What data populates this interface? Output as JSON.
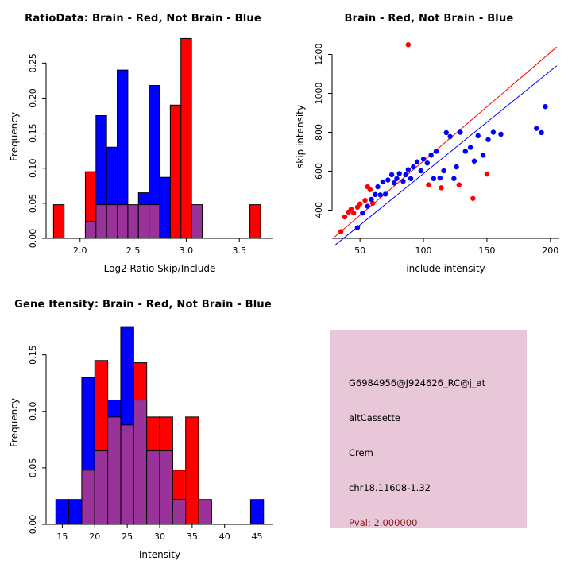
{
  "colors": {
    "red": "#ff0000",
    "blue": "#0000ff",
    "overlap": "#993399",
    "axis": "#000000",
    "info_bg": "#e8c7d8",
    "pval_text": "#8b1a1a"
  },
  "chart_data": [
    {
      "id": "ratio-hist",
      "type": "bar",
      "title": "RatioData: Brain - Red, Not Brain - Blue",
      "xlabel": "Log2 Ratio Skip/Include",
      "ylabel": "Frequency",
      "legend": "red = Brain, blue = Not Brain, purple = overlap",
      "grid": false,
      "xlim": [
        1.68,
        3.82
      ],
      "ylim": [
        0,
        0.29
      ],
      "xticks": [
        2.0,
        2.5,
        3.0,
        3.5
      ],
      "xtick_labels": [
        "2.0",
        "2.5",
        "3.0",
        "3.5"
      ],
      "yticks": [
        0,
        0.05,
        0.1,
        0.15,
        0.2,
        0.25
      ],
      "ytick_labels": [
        "0.00",
        "0.05",
        "0.10",
        "0.15",
        "0.20",
        "0.25"
      ],
      "bin_width": 0.1,
      "bin_starts": [
        1.75,
        2.05,
        2.15,
        2.25,
        2.35,
        2.45,
        2.55,
        2.65,
        2.75,
        2.85,
        2.95,
        3.05,
        3.6
      ],
      "series": [
        {
          "name": "Brain",
          "color": "red",
          "values": [
            0.048,
            0.095,
            0.048,
            0.048,
            0.048,
            0.048,
            0.048,
            0.048,
            0,
            0.19,
            0.285,
            0.048,
            0.048
          ]
        },
        {
          "name": "Not Brain",
          "color": "blue",
          "values": [
            0,
            0.024,
            0.175,
            0.13,
            0.24,
            0.048,
            0.065,
            0.218,
            0.087,
            0,
            0,
            0.048,
            0
          ]
        }
      ]
    },
    {
      "id": "scatter",
      "type": "scatter",
      "title": "Brain - Red, Not Brain - Blue",
      "xlabel": "include intensity",
      "ylabel": "skip intensity",
      "legend": "red = Brain, blue = Not Brain",
      "grid": false,
      "xlim": [
        28,
        207
      ],
      "ylim": [
        255,
        1300
      ],
      "xticks": [
        50,
        100,
        150,
        200
      ],
      "xtick_labels": [
        "50",
        "100",
        "150",
        "200"
      ],
      "yticks": [
        400,
        600,
        800,
        1000,
        1200
      ],
      "ytick_labels": [
        "400",
        "600",
        "800",
        "1000",
        "1200"
      ],
      "lines": [
        {
          "color": "red",
          "from": [
            30,
            262
          ],
          "to": [
            205,
            1238
          ]
        },
        {
          "color": "blue",
          "from": [
            30,
            218
          ],
          "to": [
            205,
            1142
          ]
        }
      ],
      "series": [
        {
          "name": "Brain",
          "color": "red",
          "points": [
            [
              35,
              290
            ],
            [
              38,
              365
            ],
            [
              41,
              390
            ],
            [
              43,
              405
            ],
            [
              45,
              385
            ],
            [
              48,
              415
            ],
            [
              50,
              432
            ],
            [
              54,
              450
            ],
            [
              56,
              520
            ],
            [
              58,
              505
            ],
            [
              60,
              435
            ],
            [
              88,
              1250
            ],
            [
              104,
              530
            ],
            [
              114,
              515
            ],
            [
              128,
              530
            ],
            [
              139,
              460
            ],
            [
              150,
              585
            ]
          ]
        },
        {
          "name": "Not Brain",
          "color": "blue",
          "points": [
            [
              48,
              310
            ],
            [
              52,
              385
            ],
            [
              56,
              420
            ],
            [
              59,
              455
            ],
            [
              62,
              480
            ],
            [
              64,
              520
            ],
            [
              66,
              478
            ],
            [
              68,
              545
            ],
            [
              70,
              482
            ],
            [
              72,
              555
            ],
            [
              75,
              582
            ],
            [
              77,
              540
            ],
            [
              79,
              562
            ],
            [
              81,
              588
            ],
            [
              84,
              548
            ],
            [
              86,
              582
            ],
            [
              88,
              608
            ],
            [
              90,
              562
            ],
            [
              92,
              622
            ],
            [
              95,
              648
            ],
            [
              98,
              602
            ],
            [
              100,
              662
            ],
            [
              103,
              642
            ],
            [
              106,
              682
            ],
            [
              108,
              562
            ],
            [
              110,
              702
            ],
            [
              113,
              565
            ],
            [
              116,
              602
            ],
            [
              118,
              798
            ],
            [
              121,
              778
            ],
            [
              124,
              562
            ],
            [
              126,
              622
            ],
            [
              129,
              800
            ],
            [
              133,
              702
            ],
            [
              137,
              722
            ],
            [
              140,
              652
            ],
            [
              143,
              782
            ],
            [
              147,
              682
            ],
            [
              151,
              762
            ],
            [
              155,
              800
            ],
            [
              161,
              790
            ],
            [
              189,
              820
            ],
            [
              193,
              798
            ],
            [
              196,
              932
            ]
          ]
        }
      ]
    },
    {
      "id": "gene-hist",
      "type": "bar",
      "title": "Gene Itensity: Brain - Red, Not Brain - Blue",
      "xlabel": "Intensity",
      "ylabel": "Frequency",
      "legend": "red = Brain, blue = Not Brain, purple = overlap",
      "grid": false,
      "xlim": [
        12.5,
        47.5
      ],
      "ylim": [
        0,
        0.18
      ],
      "xticks": [
        15,
        20,
        25,
        30,
        35,
        40,
        45
      ],
      "xtick_labels": [
        "15",
        "20",
        "25",
        "30",
        "35",
        "40",
        "45"
      ],
      "yticks": [
        0,
        0.05,
        0.1,
        0.15
      ],
      "ytick_labels": [
        "0.00",
        "0.05",
        "0.10",
        "0.15"
      ],
      "bin_width": 2,
      "bin_starts": [
        14,
        16,
        18,
        20,
        22,
        24,
        26,
        28,
        30,
        32,
        34,
        36,
        44
      ],
      "series": [
        {
          "name": "Brain",
          "color": "red",
          "values": [
            0,
            0,
            0.048,
            0.145,
            0.095,
            0.088,
            0.143,
            0.095,
            0.095,
            0.048,
            0.095,
            0.022,
            0
          ]
        },
        {
          "name": "Not Brain",
          "color": "blue",
          "values": [
            0.022,
            0.022,
            0.13,
            0.065,
            0.11,
            0.175,
            0.11,
            0.065,
            0.065,
            0.022,
            0,
            0.022,
            0.022
          ]
        }
      ]
    }
  ],
  "info_box": {
    "lines": [
      "G6984956@J924626_RC@j_at",
      "altCassette",
      "Crem",
      "chr18.11608-1.32"
    ],
    "pval": "Pval: 2.000000"
  }
}
